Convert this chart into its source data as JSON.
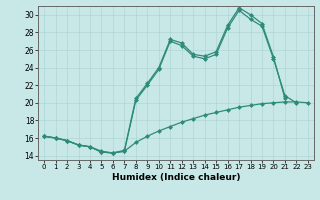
{
  "xlabel": "Humidex (Indice chaleur)",
  "bg_color": "#c8e8e8",
  "line_color": "#2e8b7a",
  "grid_color": "#b0d4d4",
  "xlim": [
    -0.5,
    23.5
  ],
  "ylim": [
    13.5,
    31.0
  ],
  "yticks": [
    14,
    16,
    18,
    20,
    22,
    24,
    26,
    28,
    30
  ],
  "xticks": [
    0,
    1,
    2,
    3,
    4,
    5,
    6,
    7,
    8,
    9,
    10,
    11,
    12,
    13,
    14,
    15,
    16,
    17,
    18,
    19,
    20,
    21,
    22,
    23
  ],
  "line1_x": [
    0,
    1,
    2,
    3,
    4,
    5,
    6,
    7,
    8,
    9,
    10,
    11,
    12,
    13,
    14,
    15,
    16,
    17,
    18,
    19,
    20,
    21,
    22
  ],
  "line1_y": [
    16.2,
    16.0,
    15.7,
    15.2,
    15.0,
    14.4,
    14.3,
    14.5,
    20.3,
    22.0,
    23.8,
    27.0,
    26.5,
    25.3,
    25.0,
    25.5,
    28.5,
    30.5,
    29.5,
    28.7,
    25.0,
    20.8,
    20.0
  ],
  "line2_x": [
    0,
    1,
    2,
    3,
    4,
    5,
    6,
    7,
    8,
    9,
    10,
    11,
    12,
    13,
    14,
    15,
    16,
    17,
    18,
    19,
    20,
    21
  ],
  "line2_y": [
    16.2,
    16.0,
    15.7,
    15.2,
    15.0,
    14.5,
    14.3,
    14.6,
    20.5,
    22.2,
    24.0,
    27.2,
    26.8,
    25.5,
    25.3,
    25.8,
    28.8,
    30.8,
    30.0,
    29.0,
    25.2,
    20.5
  ],
  "line3_x": [
    0,
    1,
    2,
    3,
    4,
    5,
    6,
    7,
    8,
    9,
    10,
    11,
    12,
    13,
    14,
    15,
    16,
    17,
    18,
    19,
    20,
    21,
    22,
    23
  ],
  "line3_y": [
    16.2,
    16.0,
    15.7,
    15.2,
    15.0,
    14.4,
    14.3,
    14.5,
    15.5,
    16.2,
    16.8,
    17.3,
    17.8,
    18.2,
    18.6,
    18.9,
    19.2,
    19.5,
    19.7,
    19.9,
    20.0,
    20.1,
    20.1,
    20.0
  ],
  "marker": "D",
  "markersize": 2.5,
  "linewidth": 0.9
}
